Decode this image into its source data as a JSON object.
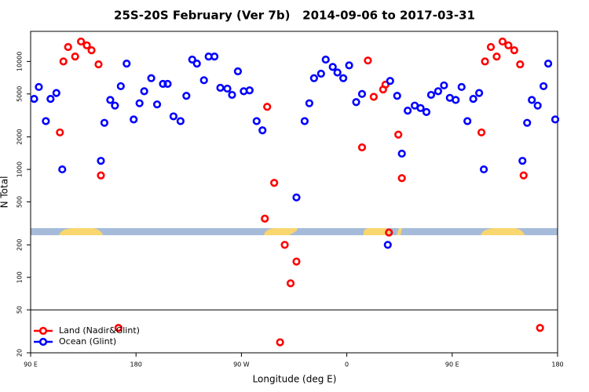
{
  "chart_data": {
    "type": "scatter",
    "title": "25S-20S February (Ver 7b)   2014-09-06 to 2017-03-31",
    "xlabel": "Longitude (deg E)",
    "ylabel": "N Total",
    "log_y": true,
    "xlim": [
      90,
      540
    ],
    "ylim": [
      20,
      19000
    ],
    "xticks": [
      {
        "value": 90,
        "label": "90 E"
      },
      180,
      {
        "value": 270,
        "label": "90 W"
      },
      {
        "value": 360,
        "label": "0"
      },
      {
        "value": 450,
        "label": "90 E"
      },
      {
        "value": 540,
        "label": "180"
      }
    ],
    "yticks": [
      20,
      50,
      100,
      200,
      500,
      1000,
      2000,
      5000,
      10000
    ],
    "hline": 50,
    "legend": "bottom left",
    "series": [
      {
        "name": "Land (Nadir&Glint)",
        "color": "#ff0000",
        "x": [
          115,
          118,
          122,
          128,
          133,
          138,
          142,
          148,
          150,
          165,
          290,
          292,
          298,
          303,
          307,
          312,
          317,
          373,
          378,
          383,
          391,
          393,
          396,
          404,
          407,
          475,
          478,
          483,
          488,
          493,
          498,
          503,
          508,
          511,
          525
        ],
        "values": [
          2200,
          10000,
          13600,
          11100,
          15300,
          14100,
          12700,
          9400,
          880,
          34,
          350,
          3800,
          750,
          25,
          200,
          88,
          140,
          1600,
          10200,
          4700,
          5500,
          6100,
          260,
          2100,
          830,
          2200,
          10000,
          13600,
          11100,
          15300,
          14100,
          12700,
          9400,
          880,
          34
        ]
      },
      {
        "name": "Ocean (Glint)",
        "color": "#0000ff",
        "x": [
          93,
          97,
          103,
          107,
          112,
          117,
          150,
          153,
          158,
          162,
          167,
          172,
          178,
          183,
          187,
          193,
          198,
          203,
          207,
          212,
          218,
          223,
          228,
          232,
          238,
          242,
          247,
          252,
          258,
          262,
          267,
          272,
          277,
          283,
          288,
          317,
          324,
          328,
          332,
          338,
          342,
          348,
          352,
          357,
          362,
          368,
          373,
          395,
          397,
          403,
          407,
          412,
          418,
          423,
          428,
          432,
          438,
          443,
          448,
          453,
          458,
          463,
          468,
          473,
          477,
          510,
          514,
          518,
          523,
          528,
          532,
          538
        ],
        "values": [
          4500,
          5800,
          2800,
          4500,
          5100,
          1000,
          1200,
          2700,
          4400,
          3900,
          5900,
          9550,
          2900,
          4100,
          5300,
          7000,
          4000,
          6200,
          6200,
          3100,
          2800,
          4800,
          10400,
          9550,
          6700,
          11100,
          11100,
          5700,
          5600,
          4900,
          8100,
          5300,
          5400,
          2800,
          2300,
          550,
          2800,
          4100,
          7000,
          7700,
          10400,
          8900,
          7900,
          7000,
          9200,
          4200,
          5000,
          200,
          6600,
          4800,
          1400,
          3500,
          3900,
          3700,
          3400,
          4900,
          5300,
          6000,
          4600,
          4400,
          5800,
          2800,
          4500,
          5100,
          1000,
          1200,
          2700,
          4400,
          3900,
          5900,
          9550,
          2900
        ]
      }
    ]
  }
}
